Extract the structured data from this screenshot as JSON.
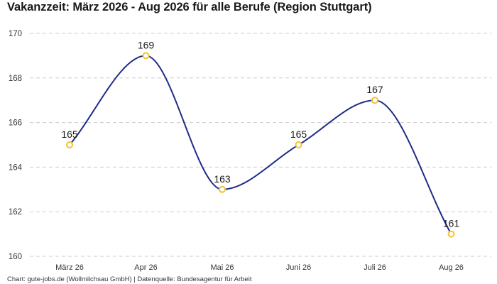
{
  "title": "Vakanzzeit: März 2026 - Aug 2026 für alle Berufe (Region Stuttgart)",
  "footer": "Chart: gute-jobs.de (Wollmilchsau GmbH) | Datenquelle: Bundesagentur für Arbeit",
  "colors": {
    "line": "#1f2d86",
    "marker_stroke": "#f2c230",
    "marker_fill": "#ffffff",
    "grid": "#cccccc"
  },
  "chart_data": {
    "type": "line",
    "categories": [
      "März 26",
      "Apr 26",
      "Mai 26",
      "Juni 26",
      "Juli 26",
      "Aug 26"
    ],
    "values": [
      165,
      169,
      163,
      165,
      167,
      161
    ],
    "data_labels": [
      "165",
      "169",
      "163",
      "165",
      "167",
      "161"
    ],
    "ylim": [
      160,
      170
    ],
    "yticks": [
      160,
      162,
      164,
      166,
      168,
      170
    ],
    "grid": true,
    "legend": "none",
    "xlabel": "",
    "ylabel": ""
  }
}
